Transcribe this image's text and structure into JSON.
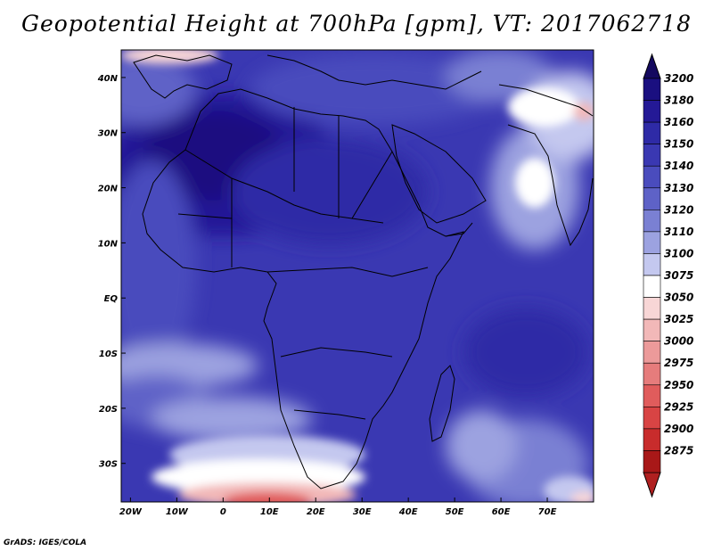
{
  "title": "Geopotential Height at 700hPa [gpm], VT: 2017062718",
  "credit": "GrADS: IGES/COLA",
  "x_ticks": [
    {
      "lon": -20,
      "label": "20W"
    },
    {
      "lon": -10,
      "label": "10W"
    },
    {
      "lon": 0,
      "label": "0"
    },
    {
      "lon": 10,
      "label": "10E"
    },
    {
      "lon": 20,
      "label": "20E"
    },
    {
      "lon": 30,
      "label": "30E"
    },
    {
      "lon": 40,
      "label": "40E"
    },
    {
      "lon": 50,
      "label": "50E"
    },
    {
      "lon": 60,
      "label": "60E"
    },
    {
      "lon": 70,
      "label": "70E"
    }
  ],
  "y_ticks": [
    {
      "lat": 40,
      "label": "40N"
    },
    {
      "lat": 30,
      "label": "30N"
    },
    {
      "lat": 20,
      "label": "20N"
    },
    {
      "lat": 10,
      "label": "10N"
    },
    {
      "lat": 0,
      "label": "EQ"
    },
    {
      "lat": -10,
      "label": "10S"
    },
    {
      "lat": -20,
      "label": "20S"
    },
    {
      "lat": -30,
      "label": "30S"
    }
  ],
  "colorbar": {
    "levels": [
      {
        "label": "3200",
        "color": "#1a0f80"
      },
      {
        "label": "3180",
        "color": "#241996"
      },
      {
        "label": "3160",
        "color": "#2e2aa6"
      },
      {
        "label": "3150",
        "color": "#3a38b2"
      },
      {
        "label": "3140",
        "color": "#4a4cbd"
      },
      {
        "label": "3130",
        "color": "#5e62c7"
      },
      {
        "label": "3120",
        "color": "#7a80d3"
      },
      {
        "label": "3110",
        "color": "#9ca2e0"
      },
      {
        "label": "3100",
        "color": "#c4c8ef"
      },
      {
        "label": "3075",
        "color": "#ffffff"
      },
      {
        "label": "3050",
        "color": "#f8d6d6"
      },
      {
        "label": "3025",
        "color": "#f2b8b8"
      },
      {
        "label": "3000",
        "color": "#ec9a9a"
      },
      {
        "label": "2975",
        "color": "#e67c7c"
      },
      {
        "label": "2950",
        "color": "#e05c5c"
      },
      {
        "label": "2925",
        "color": "#d84444"
      },
      {
        "label": "2900",
        "color": "#c82c2c"
      },
      {
        "label": "2875",
        "color": "#a81818"
      }
    ],
    "top_arrow_color": "#14095f",
    "bottom_arrow_color": "#b02020"
  },
  "map_extent": {
    "lon_min": -22,
    "lon_max": 80,
    "lat_min": -37,
    "lat_max": 45
  }
}
